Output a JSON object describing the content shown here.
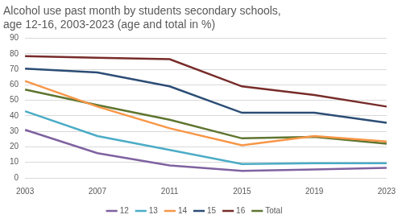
{
  "chart_data": {
    "type": "line",
    "title": [
      "Alcohol use past month by students secondary schools,",
      "age 12-16, 2003-2023 (age and total in %)"
    ],
    "categories": [
      "2003",
      "2007",
      "2011",
      "2015",
      "2019",
      "2023"
    ],
    "series": [
      {
        "name": "12",
        "color": "#7f62a0",
        "values": [
          31,
          16,
          8,
          4.5,
          5.5,
          6.5
        ]
      },
      {
        "name": "13",
        "color": "#4bacc6",
        "values": [
          43,
          27,
          18,
          9,
          9.5,
          9.5
        ]
      },
      {
        "name": "14",
        "color": "#f79646",
        "values": [
          62.5,
          46,
          32,
          21,
          27,
          23.5
        ]
      },
      {
        "name": "15",
        "color": "#2c4d75",
        "values": [
          70.5,
          68,
          59,
          42,
          42,
          35.5
        ]
      },
      {
        "name": "16",
        "color": "#772c2a",
        "values": [
          78.5,
          77.5,
          76.5,
          59,
          53.5,
          46
        ]
      },
      {
        "name": "Total",
        "color": "#5f7530",
        "values": [
          57,
          47,
          37.5,
          25.5,
          26.5,
          22
        ]
      }
    ],
    "ylim": [
      0,
      90
    ],
    "yticks": [
      0,
      10,
      20,
      30,
      40,
      50,
      60,
      70,
      80,
      90
    ],
    "grid": true,
    "legend": "bottom"
  }
}
